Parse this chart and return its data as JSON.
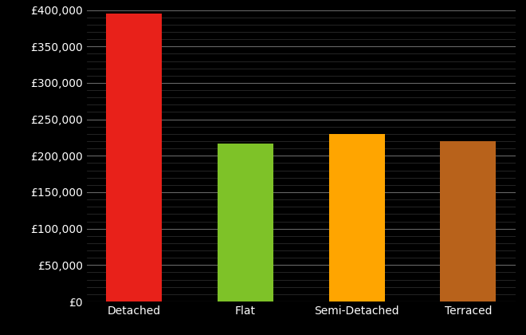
{
  "categories": [
    "Detached",
    "Flat",
    "Semi-Detached",
    "Terraced"
  ],
  "values": [
    395000,
    217000,
    230000,
    220000
  ],
  "bar_colors": [
    "#e8211a",
    "#7ec228",
    "#ffa500",
    "#b8621b"
  ],
  "background_color": "#000000",
  "text_color": "#ffffff",
  "grid_color": "#666666",
  "minor_grid_color": "#333333",
  "ylim": [
    0,
    400000
  ],
  "ytick_step": 50000,
  "ytick_minor_step": 10000,
  "bar_width": 0.5,
  "tick_fontsize": 10,
  "xlabel_fontsize": 10
}
